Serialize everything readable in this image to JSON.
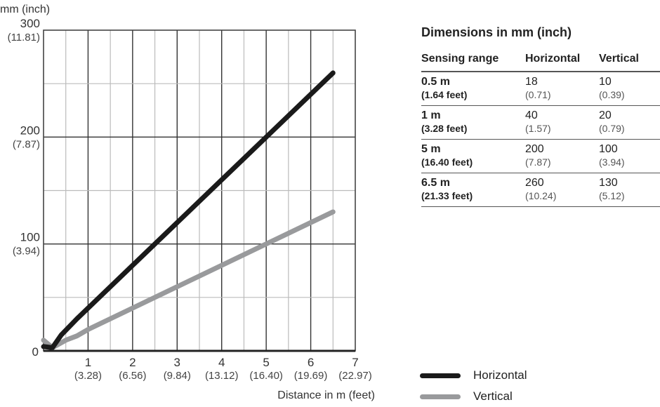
{
  "chart_data": {
    "type": "line",
    "title": "",
    "ylabel": "mm (inch)",
    "xlabel": "Distance in m (feet)",
    "xlim": [
      0,
      7
    ],
    "ylim": [
      0,
      300
    ],
    "xticks": [
      {
        "v": 1,
        "l": "1",
        "s": "(3.28)"
      },
      {
        "v": 2,
        "l": "2",
        "s": "(6.56)"
      },
      {
        "v": 3,
        "l": "3",
        "s": "(9.84)"
      },
      {
        "v": 4,
        "l": "4",
        "s": "(13.12)"
      },
      {
        "v": 5,
        "l": "5",
        "s": "(16.40)"
      },
      {
        "v": 6,
        "l": "6",
        "s": "(19.69)"
      },
      {
        "v": 7,
        "l": "7",
        "s": "(22.97)"
      }
    ],
    "yticks": [
      {
        "v": 0,
        "l": "0",
        "s": ""
      },
      {
        "v": 100,
        "l": "100",
        "s": "(3.94)"
      },
      {
        "v": 200,
        "l": "200",
        "s": "(7.87)"
      },
      {
        "v": 300,
        "l": "300",
        "s": "(11.81)"
      }
    ],
    "grid": true,
    "legend": "bottom-right",
    "series": [
      {
        "name": "Horizontal",
        "color": "#1a1a1a",
        "x": [
          0,
          0.2,
          0.4,
          0.75,
          1,
          6.5
        ],
        "y": [
          4,
          3,
          15,
          30,
          40,
          260
        ]
      },
      {
        "name": "Vertical",
        "color": "#999a9c",
        "x": [
          0,
          0.2,
          0.5,
          0.75,
          1,
          6.5
        ],
        "y": [
          10,
          3,
          10,
          14,
          20,
          130
        ]
      }
    ]
  },
  "table": {
    "title": "Dimensions in mm (inch)",
    "headers": [
      "Sensing range",
      "Horizontal",
      "Vertical"
    ],
    "rows": [
      {
        "range": "0.5 m",
        "feet": "(1.64 feet)",
        "h": "18",
        "hi": "(0.71)",
        "v": "10",
        "vi": "(0.39)"
      },
      {
        "range": "1 m",
        "feet": "(3.28 feet)",
        "h": "40",
        "hi": "(1.57)",
        "v": "20",
        "vi": "(0.79)"
      },
      {
        "range": "5 m",
        "feet": "(16.40 feet)",
        "h": "200",
        "hi": "(7.87)",
        "v": "100",
        "vi": "(3.94)"
      },
      {
        "range": "6.5 m",
        "feet": "(21.33 feet)",
        "h": "260",
        "hi": "(10.24)",
        "v": "130",
        "vi": "(5.12)"
      }
    ]
  }
}
